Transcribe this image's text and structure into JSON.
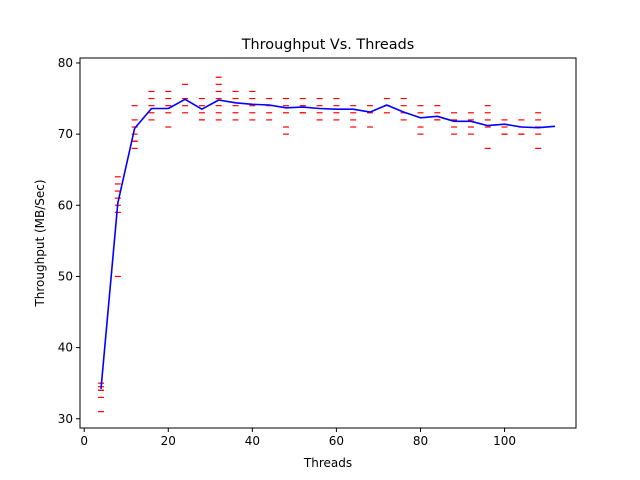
{
  "chart_data": {
    "type": "line",
    "title": "Throughput Vs. Threads",
    "xlabel": "Threads",
    "ylabel": "Throughput (MB/Sec)",
    "xlim": [
      -1,
      117
    ],
    "ylim": [
      28.7,
      80.7
    ],
    "xticks": [
      0,
      20,
      40,
      60,
      80,
      100
    ],
    "yticks": [
      30,
      40,
      50,
      60,
      70,
      80
    ],
    "grid": false,
    "colors": {
      "line": "#0000ff",
      "samples": "#ff0000"
    },
    "series": [
      {
        "x": [
          4,
          8,
          12,
          16,
          20,
          24,
          28,
          32,
          36,
          40,
          44,
          48,
          52,
          56,
          60,
          64,
          68,
          72,
          76,
          80,
          84,
          88,
          92,
          96,
          100,
          104,
          108,
          112
        ],
        "values": [
          34.2,
          60.3,
          70.8,
          73.6,
          73.6,
          74.9,
          73.5,
          74.8,
          74.4,
          74.2,
          74.1,
          73.7,
          73.8,
          73.6,
          73.5,
          73.5,
          73.1,
          74.1,
          73.1,
          72.3,
          72.5,
          71.8,
          71.8,
          71.2,
          71.4,
          71.0,
          70.9,
          71.1
        ]
      },
      {
        "x": [
          4,
          4,
          4,
          4,
          4,
          4,
          8,
          8,
          8,
          8,
          8,
          8,
          8,
          12,
          12,
          12,
          12,
          12,
          12,
          12,
          16,
          16,
          16,
          16,
          16,
          20,
          20,
          20,
          20,
          20,
          24,
          24,
          24,
          24,
          28,
          28,
          28,
          28,
          28,
          32,
          32,
          32,
          32,
          32,
          32,
          32,
          36,
          36,
          36,
          36,
          36,
          40,
          40,
          40,
          40,
          40,
          44,
          44,
          44,
          44,
          48,
          48,
          48,
          48,
          48,
          52,
          52,
          52,
          52,
          56,
          56,
          56,
          56,
          60,
          60,
          60,
          60,
          64,
          64,
          64,
          64,
          68,
          68,
          68,
          72,
          72,
          72,
          76,
          76,
          76,
          76,
          80,
          80,
          80,
          80,
          84,
          84,
          84,
          84,
          88,
          88,
          88,
          88,
          92,
          92,
          92,
          92,
          96,
          96,
          96,
          96,
          96,
          100,
          100,
          100,
          100,
          104,
          104,
          104,
          104,
          108,
          108,
          108,
          108,
          108
        ],
        "values": [
          35,
          34.5,
          34,
          34,
          33,
          31,
          64,
          63,
          62,
          61,
          60,
          59,
          50,
          74,
          72,
          71,
          70,
          69,
          69,
          68,
          76,
          75,
          74,
          73,
          72,
          76,
          75,
          74,
          73,
          71,
          77,
          75,
          74,
          73,
          75,
          74,
          73,
          72,
          72,
          78,
          77,
          76,
          75,
          74,
          73,
          72,
          76,
          75,
          74,
          73,
          72,
          76,
          75,
          74,
          73,
          72,
          75,
          74,
          73,
          72,
          75,
          74,
          73,
          71,
          70,
          75,
          74,
          73,
          73,
          75,
          74,
          73,
          72,
          75,
          74,
          73,
          72,
          74,
          73,
          72,
          71,
          74,
          73,
          71,
          75,
          74,
          73,
          75,
          74,
          73,
          72,
          74,
          73,
          71,
          70,
          74,
          73,
          72,
          72,
          73,
          72,
          71,
          70,
          73,
          72,
          71,
          70,
          74,
          73,
          72,
          71,
          68,
          72,
          71,
          70,
          70,
          72,
          71,
          70,
          70,
          73,
          72,
          71,
          70,
          68
        ]
      }
    ]
  }
}
